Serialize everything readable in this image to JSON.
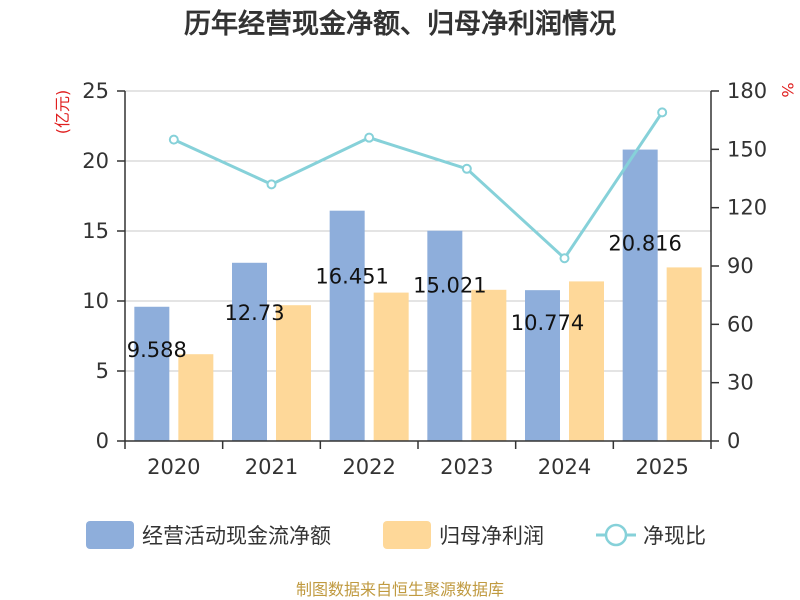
{
  "chart_data": {
    "type": "bar",
    "title": "历年经营现金净额、归母净利润情况",
    "categories": [
      "2020",
      "2021",
      "2022",
      "2023",
      "2024",
      "2025"
    ],
    "y_left": {
      "unit": "(亿元)",
      "range": [
        0,
        25
      ],
      "ticks": [
        "0",
        "5",
        "10",
        "15",
        "20",
        "25"
      ]
    },
    "y_right": {
      "unit": "%",
      "range": [
        0,
        180
      ],
      "ticks": [
        "0",
        "30",
        "60",
        "90",
        "120",
        "150",
        "180"
      ]
    },
    "series": [
      {
        "name": "经营活动现金流净额",
        "type": "bar",
        "axis": "left",
        "color": "#8eaedb",
        "values": [
          9.588,
          12.73,
          16.451,
          15.021,
          10.774,
          20.816
        ],
        "labels": [
          "9.588",
          "12.73",
          "16.451",
          "15.021",
          "10.774",
          "20.816"
        ]
      },
      {
        "name": "归母净利润",
        "type": "bar",
        "axis": "left",
        "color": "#fed899",
        "values": [
          6.2,
          9.7,
          10.6,
          10.8,
          11.4,
          12.4
        ]
      },
      {
        "name": "净现比",
        "type": "line",
        "axis": "right",
        "color": "#86d1d9",
        "values": [
          155,
          132,
          156,
          140,
          94,
          169
        ]
      }
    ],
    "grid": true,
    "legend_position": "bottom",
    "source": "制图数据来自恒生聚源数据库"
  }
}
